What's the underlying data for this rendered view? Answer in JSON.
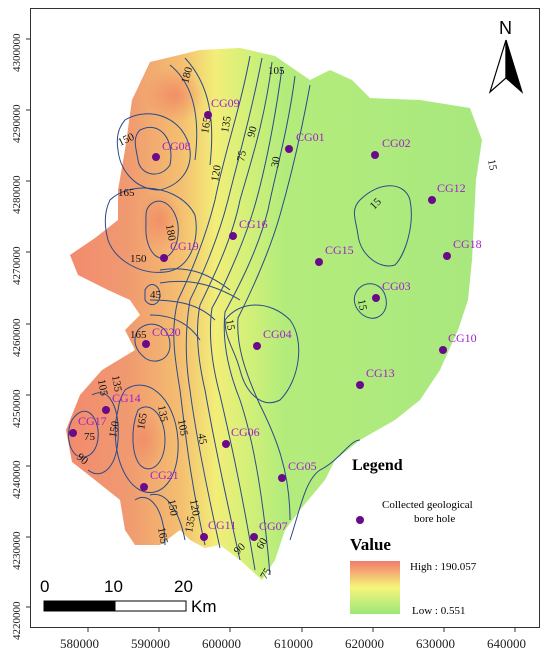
{
  "map": {
    "y_ticks": [
      "4220000",
      "4230000",
      "4240000",
      "4250000",
      "4260000",
      "4270000",
      "4280000",
      "4290000",
      "4300000"
    ],
    "x_ticks": [
      "580000",
      "590000",
      "600000",
      "610000",
      "620000",
      "630000",
      "640000"
    ]
  },
  "bore_holes": [
    {
      "id": "CG01",
      "label": "CG01"
    },
    {
      "id": "CG02",
      "label": "CG02"
    },
    {
      "id": "CG03",
      "label": "CG03"
    },
    {
      "id": "CG04",
      "label": "CG04"
    },
    {
      "id": "CG05",
      "label": "CG05"
    },
    {
      "id": "CG06",
      "label": "CG06"
    },
    {
      "id": "CG07",
      "label": "CG07"
    },
    {
      "id": "CG08",
      "label": "CG08"
    },
    {
      "id": "CG09",
      "label": "CG09"
    },
    {
      "id": "CG10",
      "label": "CG10"
    },
    {
      "id": "CG11",
      "label": "CG11"
    },
    {
      "id": "CG12",
      "label": "CG12"
    },
    {
      "id": "CG13",
      "label": "CG13"
    },
    {
      "id": "CG14",
      "label": "CG14"
    },
    {
      "id": "CG15",
      "label": "CG15"
    },
    {
      "id": "CG16",
      "label": "CG16"
    },
    {
      "id": "CG17",
      "label": "CG17"
    },
    {
      "id": "CG18",
      "label": "CG18"
    },
    {
      "id": "CG19",
      "label": "CG19"
    },
    {
      "id": "CG20",
      "label": "CG20"
    },
    {
      "id": "CG21",
      "label": "CG21"
    }
  ],
  "contour_labels": [
    "180",
    "165",
    "150",
    "135",
    "120",
    "105",
    "90",
    "75",
    "60",
    "45",
    "30",
    "15"
  ],
  "legend": {
    "title": "Legend",
    "marker_label_line1": "Collected geological",
    "marker_label_line2": "bore hole",
    "value_title": "Value",
    "high_label": "High : 190.057",
    "low_label": "Low : 0.551"
  },
  "scale_bar": {
    "labels": [
      "0",
      "10",
      "20"
    ],
    "unit": "Km"
  },
  "north_arrow": {
    "label": "N"
  },
  "colors": {
    "high": "#f27a6e",
    "mid": "#f6f57a",
    "low": "#9be77a",
    "marker": "#6a0a8a",
    "label": "#a020c8",
    "contour": "#2a4a8a"
  }
}
